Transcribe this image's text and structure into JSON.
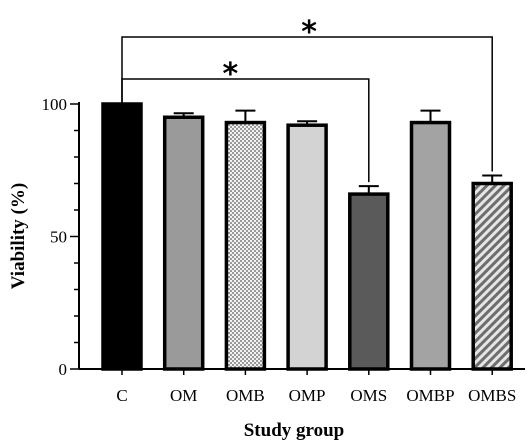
{
  "chart_data": {
    "type": "bar",
    "xlabel": "Study group",
    "ylabel": "Viability (%)",
    "categories": [
      "C",
      "OM",
      "OMB",
      "OMP",
      "OMS",
      "OMBP",
      "OMBS"
    ],
    "values": [
      100,
      95,
      93,
      92,
      66,
      93,
      70
    ],
    "errors": [
      0,
      1.5,
      4.5,
      1.5,
      3,
      4.5,
      3
    ],
    "ylim": [
      0,
      100
    ],
    "yticks": [
      0,
      50,
      100
    ],
    "grid": false,
    "legend": "none",
    "bar_styles": [
      {
        "fill": "#000000",
        "pattern": "solid"
      },
      {
        "fill": "#9a9a9a",
        "pattern": "solid"
      },
      {
        "fill": "#d6d6d6",
        "pattern": "checker"
      },
      {
        "fill": "#d3d3d3",
        "pattern": "solid"
      },
      {
        "fill": "#5a5a5a",
        "pattern": "solid"
      },
      {
        "fill": "#a3a3a3",
        "pattern": "solid"
      },
      {
        "fill": "#a8a8a8",
        "pattern": "hatch"
      }
    ],
    "significance": [
      {
        "from": "C",
        "to": "OMS",
        "label": "*"
      },
      {
        "from": "C",
        "to": "OMBS",
        "label": "*"
      }
    ]
  }
}
